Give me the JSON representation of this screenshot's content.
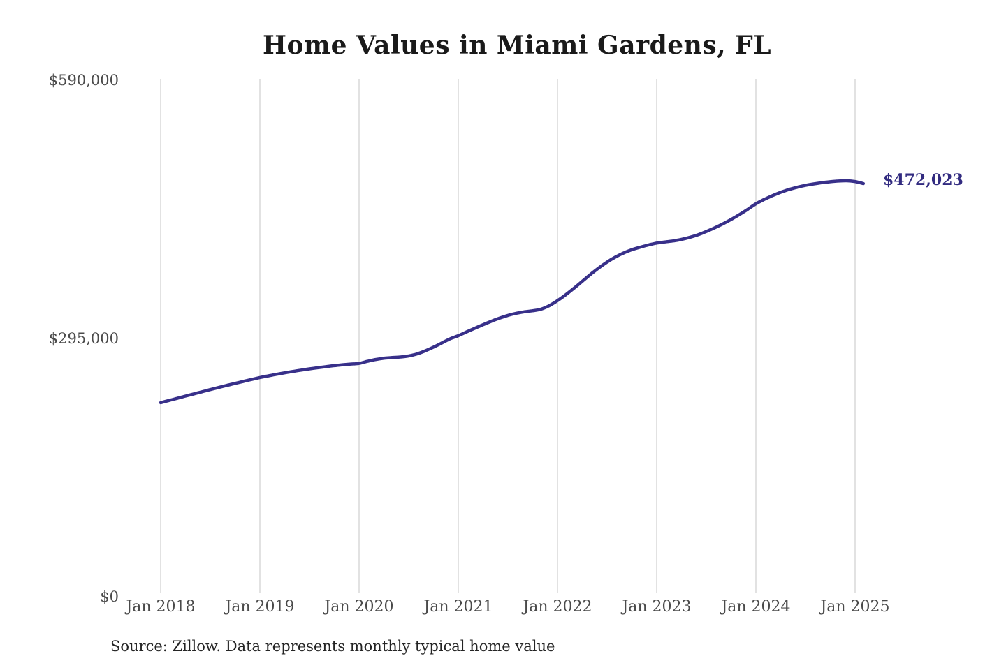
{
  "title": "Home Values in Miami Gardens, FL",
  "source": "Source: Zillow. Data represents monthly typical home value",
  "annotation": {
    "label": "$472,023"
  },
  "colors": {
    "line": "#38308a",
    "annotation": "#322b80",
    "gridline": "#c4c4c4",
    "title": "#1a1a1a",
    "axis_label": "#4a4a4a"
  },
  "y_axis": {
    "ticks": [
      {
        "label": "$0",
        "value": 0
      },
      {
        "label": "$295,000",
        "value": 295000
      },
      {
        "label": "$590,000",
        "value": 590000
      }
    ]
  },
  "x_axis": {
    "ticks": [
      "Jan 2018",
      "Jan 2019",
      "Jan 2020",
      "Jan 2021",
      "Jan 2022",
      "Jan 2023",
      "Jan 2024",
      "Jan 2025"
    ]
  },
  "chart_data": {
    "type": "line",
    "title": "Home Values in Miami Gardens, FL",
    "series_name": "Typical home value (USD)",
    "frequency": "monthly",
    "x_start": "2018-01",
    "x_end": "2025-02",
    "ylim": [
      0,
      590000
    ],
    "grid": "vertical-only",
    "final_value": 472023,
    "final_value_label": "$472,023",
    "values": [
      221700,
      224200,
      226700,
      229200,
      231700,
      234200,
      236600,
      239000,
      241400,
      243700,
      246000,
      248200,
      250400,
      252300,
      254100,
      255800,
      257400,
      258900,
      260300,
      261600,
      262800,
      264000,
      265000,
      265800,
      266500,
      268900,
      271000,
      272400,
      273200,
      273900,
      275100,
      277400,
      280900,
      285100,
      289800,
      294600,
      298200,
      302500,
      306700,
      310800,
      314700,
      318300,
      321400,
      323800,
      325500,
      326700,
      328500,
      332500,
      338200,
      345000,
      352500,
      360400,
      368300,
      375700,
      382300,
      388000,
      392700,
      396400,
      399300,
      401800,
      404000,
      405300,
      406500,
      408200,
      410500,
      413500,
      417200,
      421400,
      426000,
      431000,
      436500,
      442500,
      448900,
      453800,
      458200,
      462000,
      465200,
      467800,
      469900,
      471600,
      473000,
      474100,
      474900,
      475200,
      474300,
      472023
    ]
  }
}
